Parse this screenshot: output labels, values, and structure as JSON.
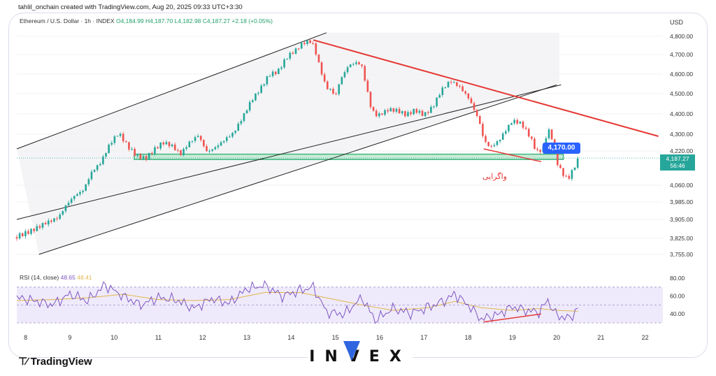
{
  "header": {
    "credit": "tahlil_onchain created with TradingView.com, Aug 20, 2025 09:33 UTC+3:30",
    "symbol": "Ethereum / U.S. Dollar · 1h · INDEX",
    "ohlc": "O4,184.99  H4,187.70  L4,182.98  C4,187.27  +2.18 (+0.05%)"
  },
  "rsi_header": {
    "label": "RSI (14, close)",
    "value1": "48.65",
    "value2": "48.41"
  },
  "currency": "USD",
  "annotations": {
    "tag": "4,170.00",
    "last_price": "4,187.27",
    "countdown": "56:46",
    "persian_label": "واگرایی"
  },
  "footer": {
    "logo_text": "TradingView",
    "brand": "INVEX"
  },
  "colors": {
    "up": "#26a69a",
    "down": "#ef5350",
    "trendline": "#e53935",
    "zone": "#43b581",
    "rsi": "#7e57c2",
    "rsi_ma": "#e0b64a"
  },
  "chart_data": [
    {
      "type": "candlestick",
      "title": "Ethereum / U.S. Dollar · 1h · INDEX",
      "x_ticks": [
        "8",
        "9",
        "10",
        "11",
        "12",
        "13",
        "14",
        "15",
        "16",
        "17",
        "18",
        "19",
        "20",
        "21",
        "22"
      ],
      "x_range": [
        7.8,
        22.4
      ],
      "y_ticks": [
        "4,800.00",
        "4,700.00",
        "4,600.00",
        "4,500.00",
        "4,400.00",
        "4,300.00",
        "4,220.00",
        "4,060.00",
        "3,985.00",
        "3,905.00",
        "3,825.00",
        "3,755.00"
      ],
      "y_ticks_values": [
        4800,
        4700,
        4600,
        4500,
        4400,
        4300,
        4220,
        4060,
        3985,
        3905,
        3825,
        3755
      ],
      "close_path": [
        [
          7.8,
          3830
        ],
        [
          8.0,
          3850
        ],
        [
          8.2,
          3870
        ],
        [
          8.4,
          3890
        ],
        [
          8.6,
          3900
        ],
        [
          8.75,
          3910
        ],
        [
          8.9,
          3960
        ],
        [
          9.1,
          4010
        ],
        [
          9.3,
          4040
        ],
        [
          9.5,
          4130
        ],
        [
          9.7,
          4170
        ],
        [
          9.9,
          4250
        ],
        [
          10.1,
          4300
        ],
        [
          10.3,
          4240
        ],
        [
          10.5,
          4200
        ],
        [
          10.7,
          4190
        ],
        [
          10.9,
          4230
        ],
        [
          11.1,
          4260
        ],
        [
          11.3,
          4240
        ],
        [
          11.5,
          4200
        ],
        [
          11.7,
          4260
        ],
        [
          11.9,
          4300
        ],
        [
          12.1,
          4220
        ],
        [
          12.3,
          4240
        ],
        [
          12.5,
          4270
        ],
        [
          12.7,
          4300
        ],
        [
          12.9,
          4380
        ],
        [
          13.1,
          4470
        ],
        [
          13.3,
          4530
        ],
        [
          13.5,
          4600
        ],
        [
          13.7,
          4610
        ],
        [
          13.9,
          4680
        ],
        [
          14.1,
          4720
        ],
        [
          14.25,
          4760
        ],
        [
          14.4,
          4780
        ],
        [
          14.5,
          4760
        ],
        [
          14.6,
          4680
        ],
        [
          14.7,
          4600
        ],
        [
          14.8,
          4530
        ],
        [
          14.9,
          4520
        ],
        [
          15.0,
          4480
        ],
        [
          15.1,
          4560
        ],
        [
          15.3,
          4640
        ],
        [
          15.5,
          4660
        ],
        [
          15.6,
          4640
        ],
        [
          15.7,
          4540
        ],
        [
          15.8,
          4440
        ],
        [
          15.9,
          4400
        ],
        [
          16.0,
          4400
        ],
        [
          16.2,
          4420
        ],
        [
          16.4,
          4410
        ],
        [
          16.6,
          4390
        ],
        [
          16.8,
          4420
        ],
        [
          17.0,
          4400
        ],
        [
          17.2,
          4440
        ],
        [
          17.4,
          4520
        ],
        [
          17.6,
          4560
        ],
        [
          17.8,
          4530
        ],
        [
          18.0,
          4480
        ],
        [
          18.1,
          4440
        ],
        [
          18.25,
          4370
        ],
        [
          18.35,
          4280
        ],
        [
          18.5,
          4240
        ],
        [
          18.7,
          4270
        ],
        [
          18.9,
          4330
        ],
        [
          19.0,
          4360
        ],
        [
          19.2,
          4350
        ],
        [
          19.4,
          4290
        ],
        [
          19.55,
          4220
        ],
        [
          19.7,
          4240
        ],
        [
          19.8,
          4330
        ],
        [
          19.9,
          4280
        ],
        [
          20.0,
          4170
        ],
        [
          20.1,
          4120
        ],
        [
          20.25,
          4080
        ],
        [
          20.4,
          4140
        ],
        [
          20.5,
          4187
        ]
      ],
      "rising_channel": {
        "upper": [
          [
            7.8,
            4230
          ],
          [
            14.8,
            4820
          ]
        ],
        "lower": [
          [
            8.3,
            3755
          ],
          [
            20.0,
            4545
          ]
        ]
      },
      "falling_trendline": [
        [
          14.5,
          4780
        ],
        [
          22.3,
          4290
        ]
      ],
      "support_zone": [
        4180,
        4205
      ],
      "divergence_line": [
        [
          18.35,
          4230
        ],
        [
          19.65,
          4170
        ]
      ]
    },
    {
      "type": "line",
      "title": "RSI (14, close)",
      "y_ticks": [
        "80.00",
        "60.00",
        "40.00"
      ],
      "y_ticks_values": [
        80,
        60,
        40
      ],
      "band": [
        30,
        70
      ],
      "series": [
        {
          "values": [
            [
              7.8,
              58
            ],
            [
              8.2,
              55
            ],
            [
              8.6,
              50
            ],
            [
              9.0,
              62
            ],
            [
              9.4,
              55
            ],
            [
              9.8,
              72
            ],
            [
              10.2,
              60
            ],
            [
              10.6,
              50
            ],
            [
              11.0,
              58
            ],
            [
              11.4,
              56
            ],
            [
              11.8,
              46
            ],
            [
              12.2,
              57
            ],
            [
              12.6,
              52
            ],
            [
              13.0,
              68
            ],
            [
              13.4,
              72
            ],
            [
              13.8,
              60
            ],
            [
              14.2,
              66
            ],
            [
              14.5,
              70
            ],
            [
              14.8,
              42
            ],
            [
              15.2,
              40
            ],
            [
              15.6,
              58
            ],
            [
              15.9,
              33
            ],
            [
              16.3,
              46
            ],
            [
              16.7,
              41
            ],
            [
              17.1,
              47
            ],
            [
              17.5,
              56
            ],
            [
              17.7,
              62
            ],
            [
              18.0,
              50
            ],
            [
              18.3,
              34
            ],
            [
              18.7,
              40
            ],
            [
              19.0,
              48
            ],
            [
              19.3,
              44
            ],
            [
              19.6,
              42
            ],
            [
              19.8,
              55
            ],
            [
              20.0,
              38
            ],
            [
              20.3,
              35
            ],
            [
              20.5,
              48
            ]
          ]
        },
        {
          "values": [
            [
              7.8,
              55
            ],
            [
              8.6,
              56
            ],
            [
              9.4,
              58
            ],
            [
              10.2,
              62
            ],
            [
              11.0,
              56
            ],
            [
              11.8,
              55
            ],
            [
              12.6,
              56
            ],
            [
              13.4,
              64
            ],
            [
              14.2,
              64
            ],
            [
              14.8,
              58
            ],
            [
              15.6,
              50
            ],
            [
              16.3,
              44
            ],
            [
              17.1,
              47
            ],
            [
              17.7,
              54
            ],
            [
              18.3,
              47
            ],
            [
              19.0,
              44
            ],
            [
              19.6,
              46
            ],
            [
              20.0,
              44
            ],
            [
              20.5,
              43
            ]
          ]
        }
      ],
      "divergence_line": [
        [
          18.35,
          31
        ],
        [
          19.65,
          40
        ]
      ]
    }
  ]
}
